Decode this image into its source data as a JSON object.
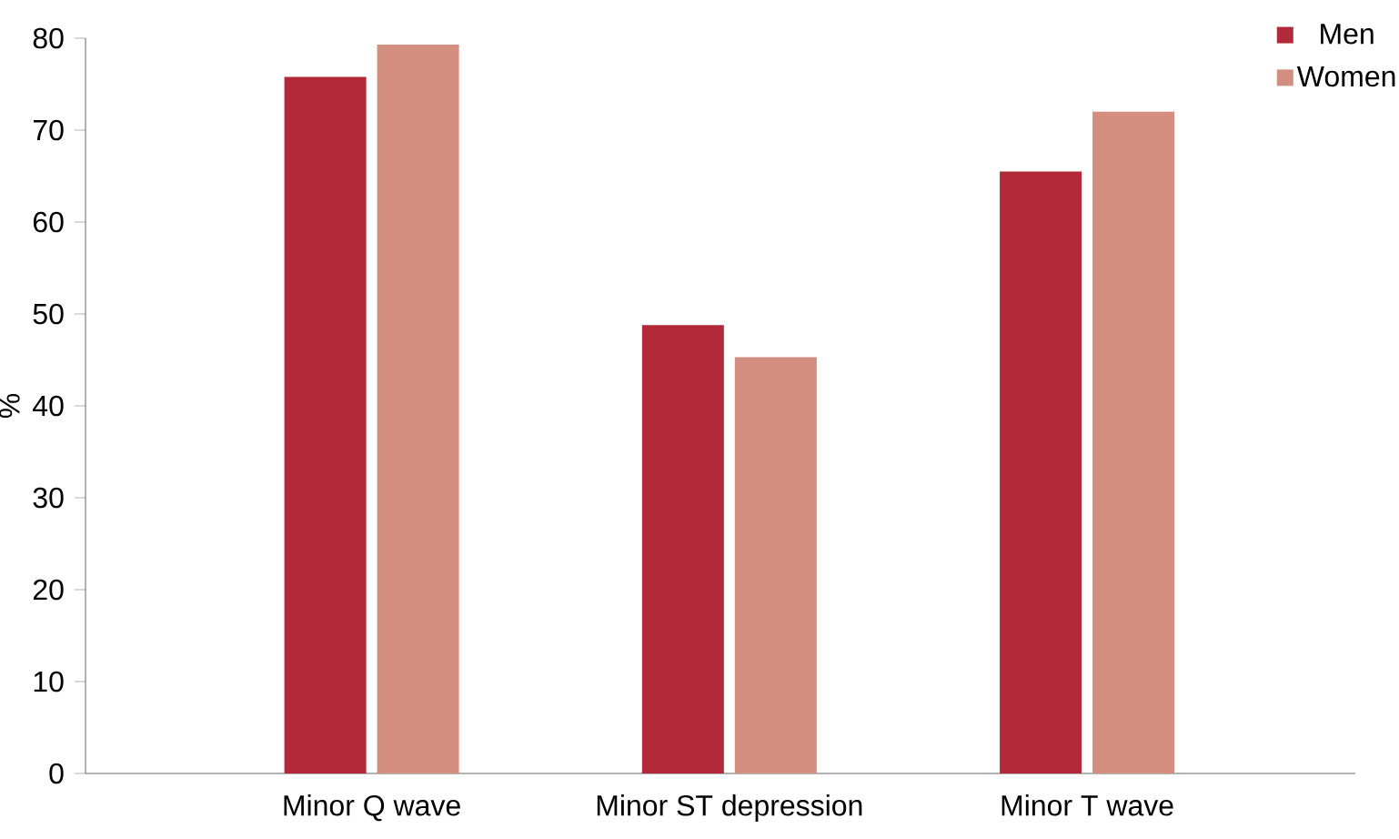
{
  "chart_data": {
    "type": "bar",
    "ylabel": "%",
    "categories": [
      "Minor Q wave",
      "Minor ST depression",
      "Minor T wave"
    ],
    "series": [
      {
        "name": "Men",
        "color": "#b22a3a",
        "values": [
          75.8,
          48.8,
          65.5
        ]
      },
      {
        "name": "Women",
        "color": "#d48e80",
        "values": [
          79.3,
          45.3,
          72.0
        ]
      }
    ],
    "ylim": [
      0,
      80
    ],
    "yticks": [
      0,
      10,
      20,
      30,
      40,
      50,
      60,
      70,
      80
    ],
    "grid": false,
    "legend": "top right"
  }
}
